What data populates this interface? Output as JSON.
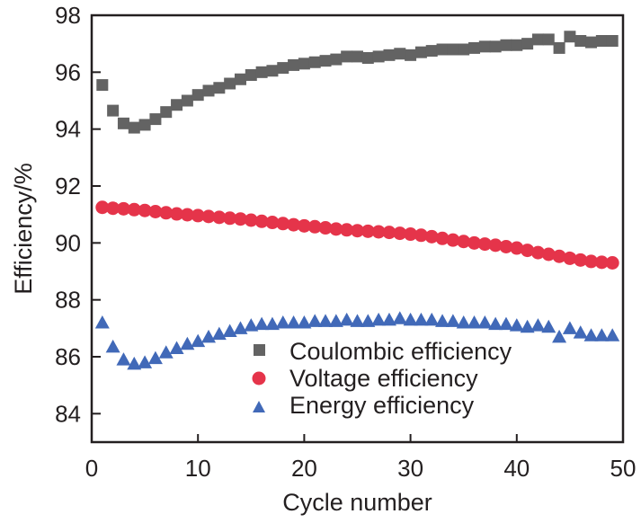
{
  "chart_data": {
    "type": "scatter",
    "title": "",
    "xlabel": "Cycle number",
    "ylabel": "Efficiency/%",
    "xlim": [
      0,
      50
    ],
    "ylim": [
      83,
      98
    ],
    "xticks": [
      0,
      10,
      20,
      30,
      40,
      50
    ],
    "yticks": [
      84,
      86,
      88,
      90,
      92,
      94,
      96,
      98
    ],
    "grid": false,
    "legend_position": "bottom-center",
    "x": [
      1,
      2,
      3,
      4,
      5,
      6,
      7,
      8,
      9,
      10,
      11,
      12,
      13,
      14,
      15,
      16,
      17,
      18,
      19,
      20,
      21,
      22,
      23,
      24,
      25,
      26,
      27,
      28,
      29,
      30,
      31,
      32,
      33,
      34,
      35,
      36,
      37,
      38,
      39,
      40,
      41,
      42,
      43,
      44,
      45,
      46,
      47,
      48,
      49
    ],
    "series": [
      {
        "name": "Coulombic efficiency",
        "marker": "square",
        "color": "#636363",
        "values": [
          95.55,
          94.65,
          94.2,
          94.05,
          94.15,
          94.35,
          94.6,
          94.85,
          95.0,
          95.2,
          95.35,
          95.45,
          95.6,
          95.75,
          95.9,
          96.0,
          96.05,
          96.15,
          96.25,
          96.3,
          96.35,
          96.4,
          96.45,
          96.55,
          96.55,
          96.5,
          96.55,
          96.6,
          96.65,
          96.6,
          96.7,
          96.75,
          96.8,
          96.8,
          96.8,
          96.85,
          96.9,
          96.9,
          96.95,
          96.95,
          97.0,
          97.15,
          97.15,
          96.85,
          97.25,
          97.1,
          97.05,
          97.1,
          97.1
        ]
      },
      {
        "name": "Voltage efficiency",
        "marker": "circle",
        "color": "#e5344a",
        "values": [
          91.25,
          91.22,
          91.2,
          91.17,
          91.14,
          91.1,
          91.06,
          91.02,
          90.99,
          90.96,
          90.93,
          90.9,
          90.87,
          90.84,
          90.8,
          90.76,
          90.72,
          90.68,
          90.64,
          90.6,
          90.57,
          90.53,
          90.49,
          90.46,
          90.43,
          90.41,
          90.39,
          90.37,
          90.34,
          90.31,
          90.27,
          90.22,
          90.16,
          90.1,
          90.05,
          90.0,
          89.96,
          89.92,
          89.87,
          89.82,
          89.74,
          89.66,
          89.6,
          89.53,
          89.46,
          89.4,
          89.35,
          89.32,
          89.3
        ]
      },
      {
        "name": "Energy efficiency",
        "marker": "triangle",
        "color": "#4169b8",
        "values": [
          87.2,
          86.35,
          85.9,
          85.75,
          85.8,
          85.95,
          86.15,
          86.3,
          86.45,
          86.55,
          86.7,
          86.8,
          86.9,
          87.0,
          87.1,
          87.15,
          87.15,
          87.2,
          87.2,
          87.2,
          87.25,
          87.25,
          87.25,
          87.3,
          87.25,
          87.25,
          87.3,
          87.3,
          87.35,
          87.3,
          87.3,
          87.3,
          87.25,
          87.25,
          87.2,
          87.2,
          87.2,
          87.15,
          87.15,
          87.1,
          87.05,
          87.1,
          87.05,
          86.7,
          87.0,
          86.85,
          86.75,
          86.75,
          86.75
        ]
      }
    ]
  }
}
